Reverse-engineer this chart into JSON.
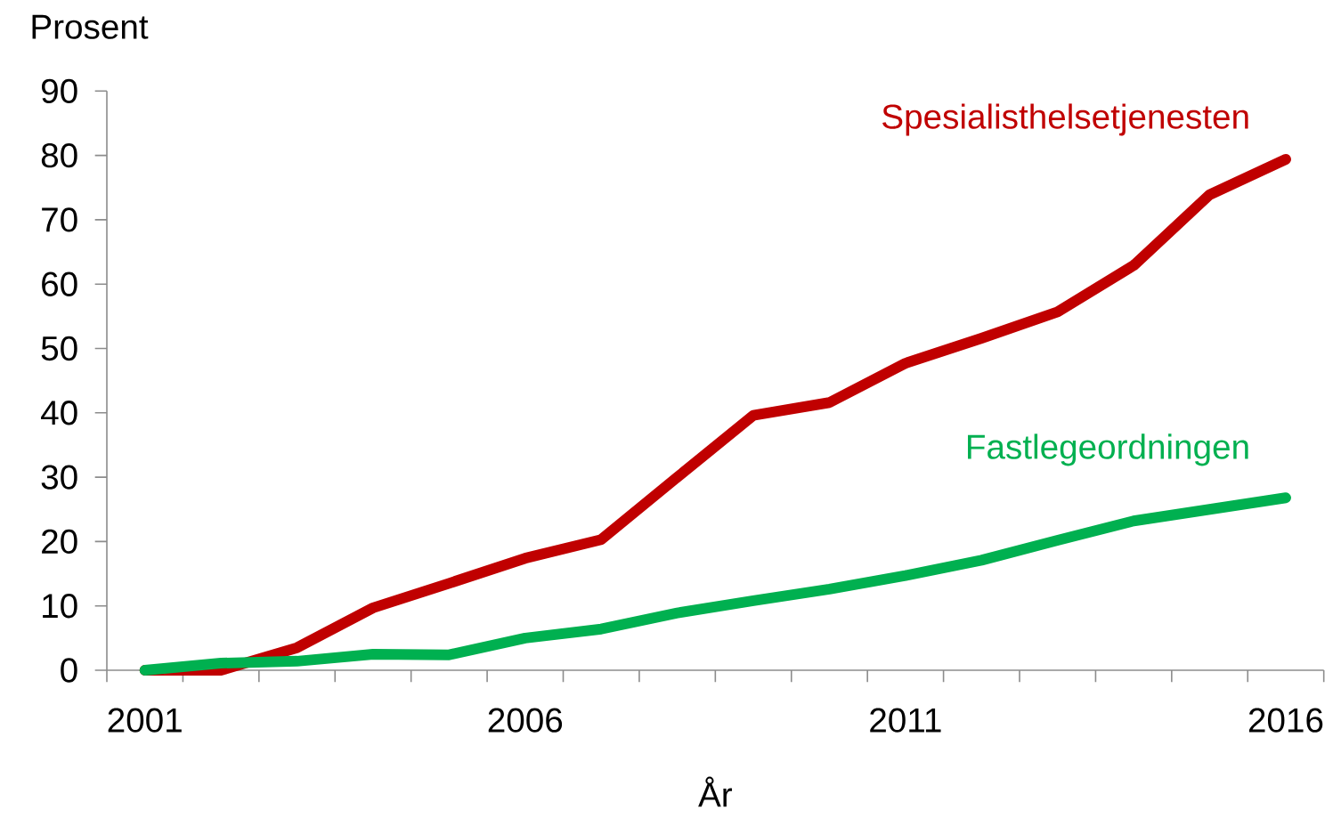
{
  "chart_data": {
    "type": "line",
    "xlabel": "År",
    "ylabel": "Prosent",
    "categories": [
      "2001",
      null,
      null,
      null,
      null,
      "2006",
      null,
      null,
      null,
      null,
      "2011",
      null,
      null,
      null,
      null,
      "2016"
    ],
    "ylim": [
      0,
      90
    ],
    "yticks": [
      0,
      10,
      20,
      30,
      40,
      50,
      60,
      70,
      80,
      90
    ],
    "series": [
      {
        "name": "Spesialisthelsetjenesten",
        "color": "#c00000",
        "values": [
          0,
          0,
          3.5,
          9.7,
          13.5,
          17.4,
          20.3,
          30,
          39.6,
          41.6,
          47.7,
          51.6,
          55.7,
          62.9,
          73.9,
          79.4
        ]
      },
      {
        "name": "Fastlegeordningen",
        "color": "#00b050",
        "values": [
          0,
          1.1,
          1.4,
          2.5,
          2.4,
          5,
          6.4,
          8.9,
          10.8,
          12.6,
          14.7,
          17.1,
          20.2,
          23.2,
          25,
          26.8
        ]
      }
    ]
  }
}
